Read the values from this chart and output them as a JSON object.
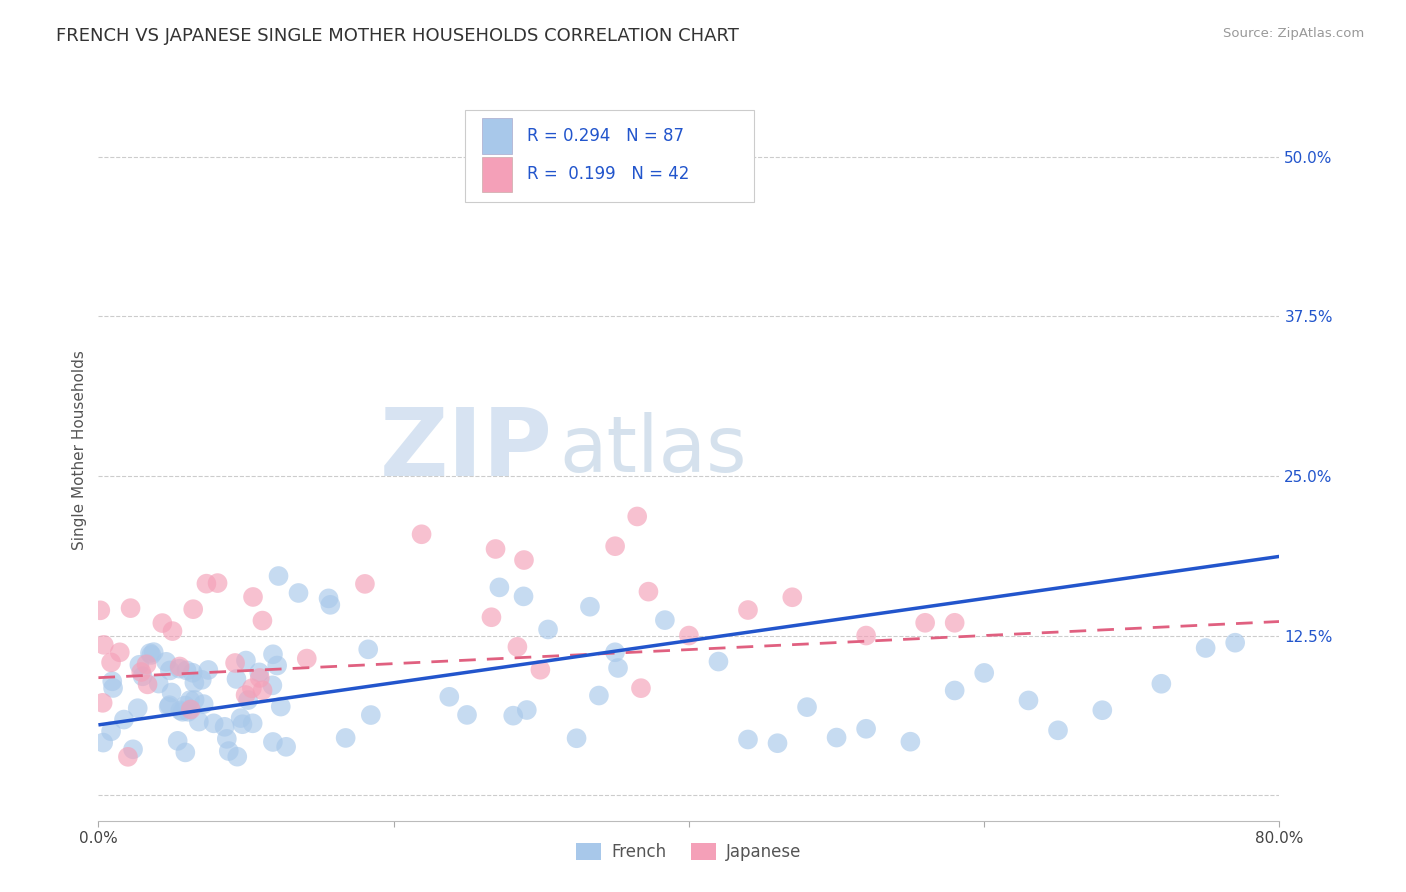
{
  "title": "FRENCH VS JAPANESE SINGLE MOTHER HOUSEHOLDS CORRELATION CHART",
  "source": "Source: ZipAtlas.com",
  "ylabel": "Single Mother Households",
  "xlim": [
    0.0,
    0.8
  ],
  "ylim": [
    -0.02,
    0.56
  ],
  "xticks": [
    0.0,
    0.2,
    0.4,
    0.6,
    0.8
  ],
  "xticklabels": [
    "0.0%",
    "",
    "",
    "",
    "80.0%"
  ],
  "yticks": [
    0.0,
    0.125,
    0.25,
    0.375,
    0.5
  ],
  "yticklabels": [
    "",
    "12.5%",
    "25.0%",
    "37.5%",
    "50.0%"
  ],
  "french_color": "#a8c8ea",
  "japanese_color": "#f4a0b8",
  "french_line_color": "#2255cc",
  "japanese_line_color": "#e06080",
  "R_french": 0.294,
  "N_french": 87,
  "R_japanese": 0.199,
  "N_japanese": 42,
  "background_color": "#ffffff",
  "french_intercept": 0.055,
  "french_slope": 0.165,
  "japanese_intercept": 0.092,
  "japanese_slope": 0.055,
  "watermark_zip": "ZIP",
  "watermark_atlas": "atlas"
}
